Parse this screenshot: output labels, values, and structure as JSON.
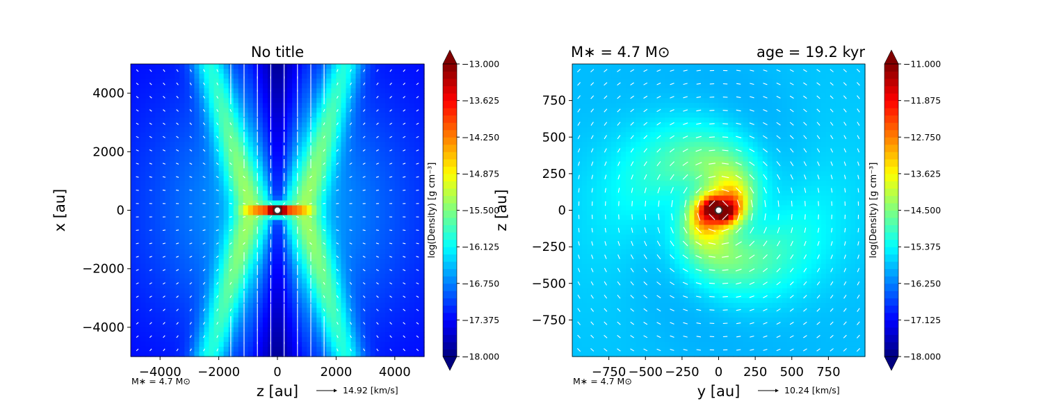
{
  "chart_data": [
    {
      "type": "heatmap",
      "title": "No title",
      "xlabel": "z [au]",
      "ylabel": "x [au]",
      "xlim": [
        -5000,
        5000
      ],
      "ylim": [
        -5000,
        5000
      ],
      "xticks": [
        -4000,
        -2000,
        0,
        2000,
        4000
      ],
      "yticks": [
        -4000,
        -2000,
        0,
        2000,
        4000
      ],
      "xtick_labels": [
        "−4000",
        "−2000",
        "0",
        "2000",
        "4000"
      ],
      "ytick_labels": [
        "−4000",
        "−2000",
        "0",
        "2000",
        "4000"
      ],
      "field": "outflow",
      "colorbar": {
        "label": "log(Density) [g cm⁻³]",
        "vmin": -18.0,
        "vmax": -13.0,
        "tick_labels": [
          "−18.000",
          "−17.375",
          "−16.750",
          "−16.125",
          "−15.500",
          "−14.875",
          "−14.250",
          "−13.625",
          "−13.000"
        ]
      },
      "mass_note": "M∗ = 4.7 M⊙",
      "vector_key": "14.92 [km/s]",
      "grid": false
    },
    {
      "type": "heatmap",
      "title_left": "M∗ = 4.7 M⊙",
      "title_right": "age = 19.2 kyr",
      "xlabel": "y [au]",
      "ylabel": "z [au]",
      "xlim": [
        -1000,
        1000
      ],
      "ylim": [
        -1000,
        1000
      ],
      "xticks": [
        -750,
        -500,
        -250,
        0,
        250,
        500,
        750
      ],
      "yticks": [
        -750,
        -500,
        -250,
        0,
        250,
        500,
        750
      ],
      "xtick_labels": [
        "−750",
        "−500",
        "−250",
        "0",
        "250",
        "500",
        "750"
      ],
      "ytick_labels": [
        "−750",
        "−500",
        "−250",
        "0",
        "250",
        "500",
        "750"
      ],
      "field": "disk",
      "colorbar": {
        "label": "log(Density) [g cm⁻³]",
        "vmin": -18.0,
        "vmax": -11.0,
        "tick_labels": [
          "−18.000",
          "−17.125",
          "−16.250",
          "−15.375",
          "−14.500",
          "−13.625",
          "−12.750",
          "−11.875",
          "−11.000"
        ]
      },
      "mass_note": "M∗ = 4.7 M⊙",
      "vector_key": "10.24 [km/s]",
      "grid": false
    }
  ]
}
